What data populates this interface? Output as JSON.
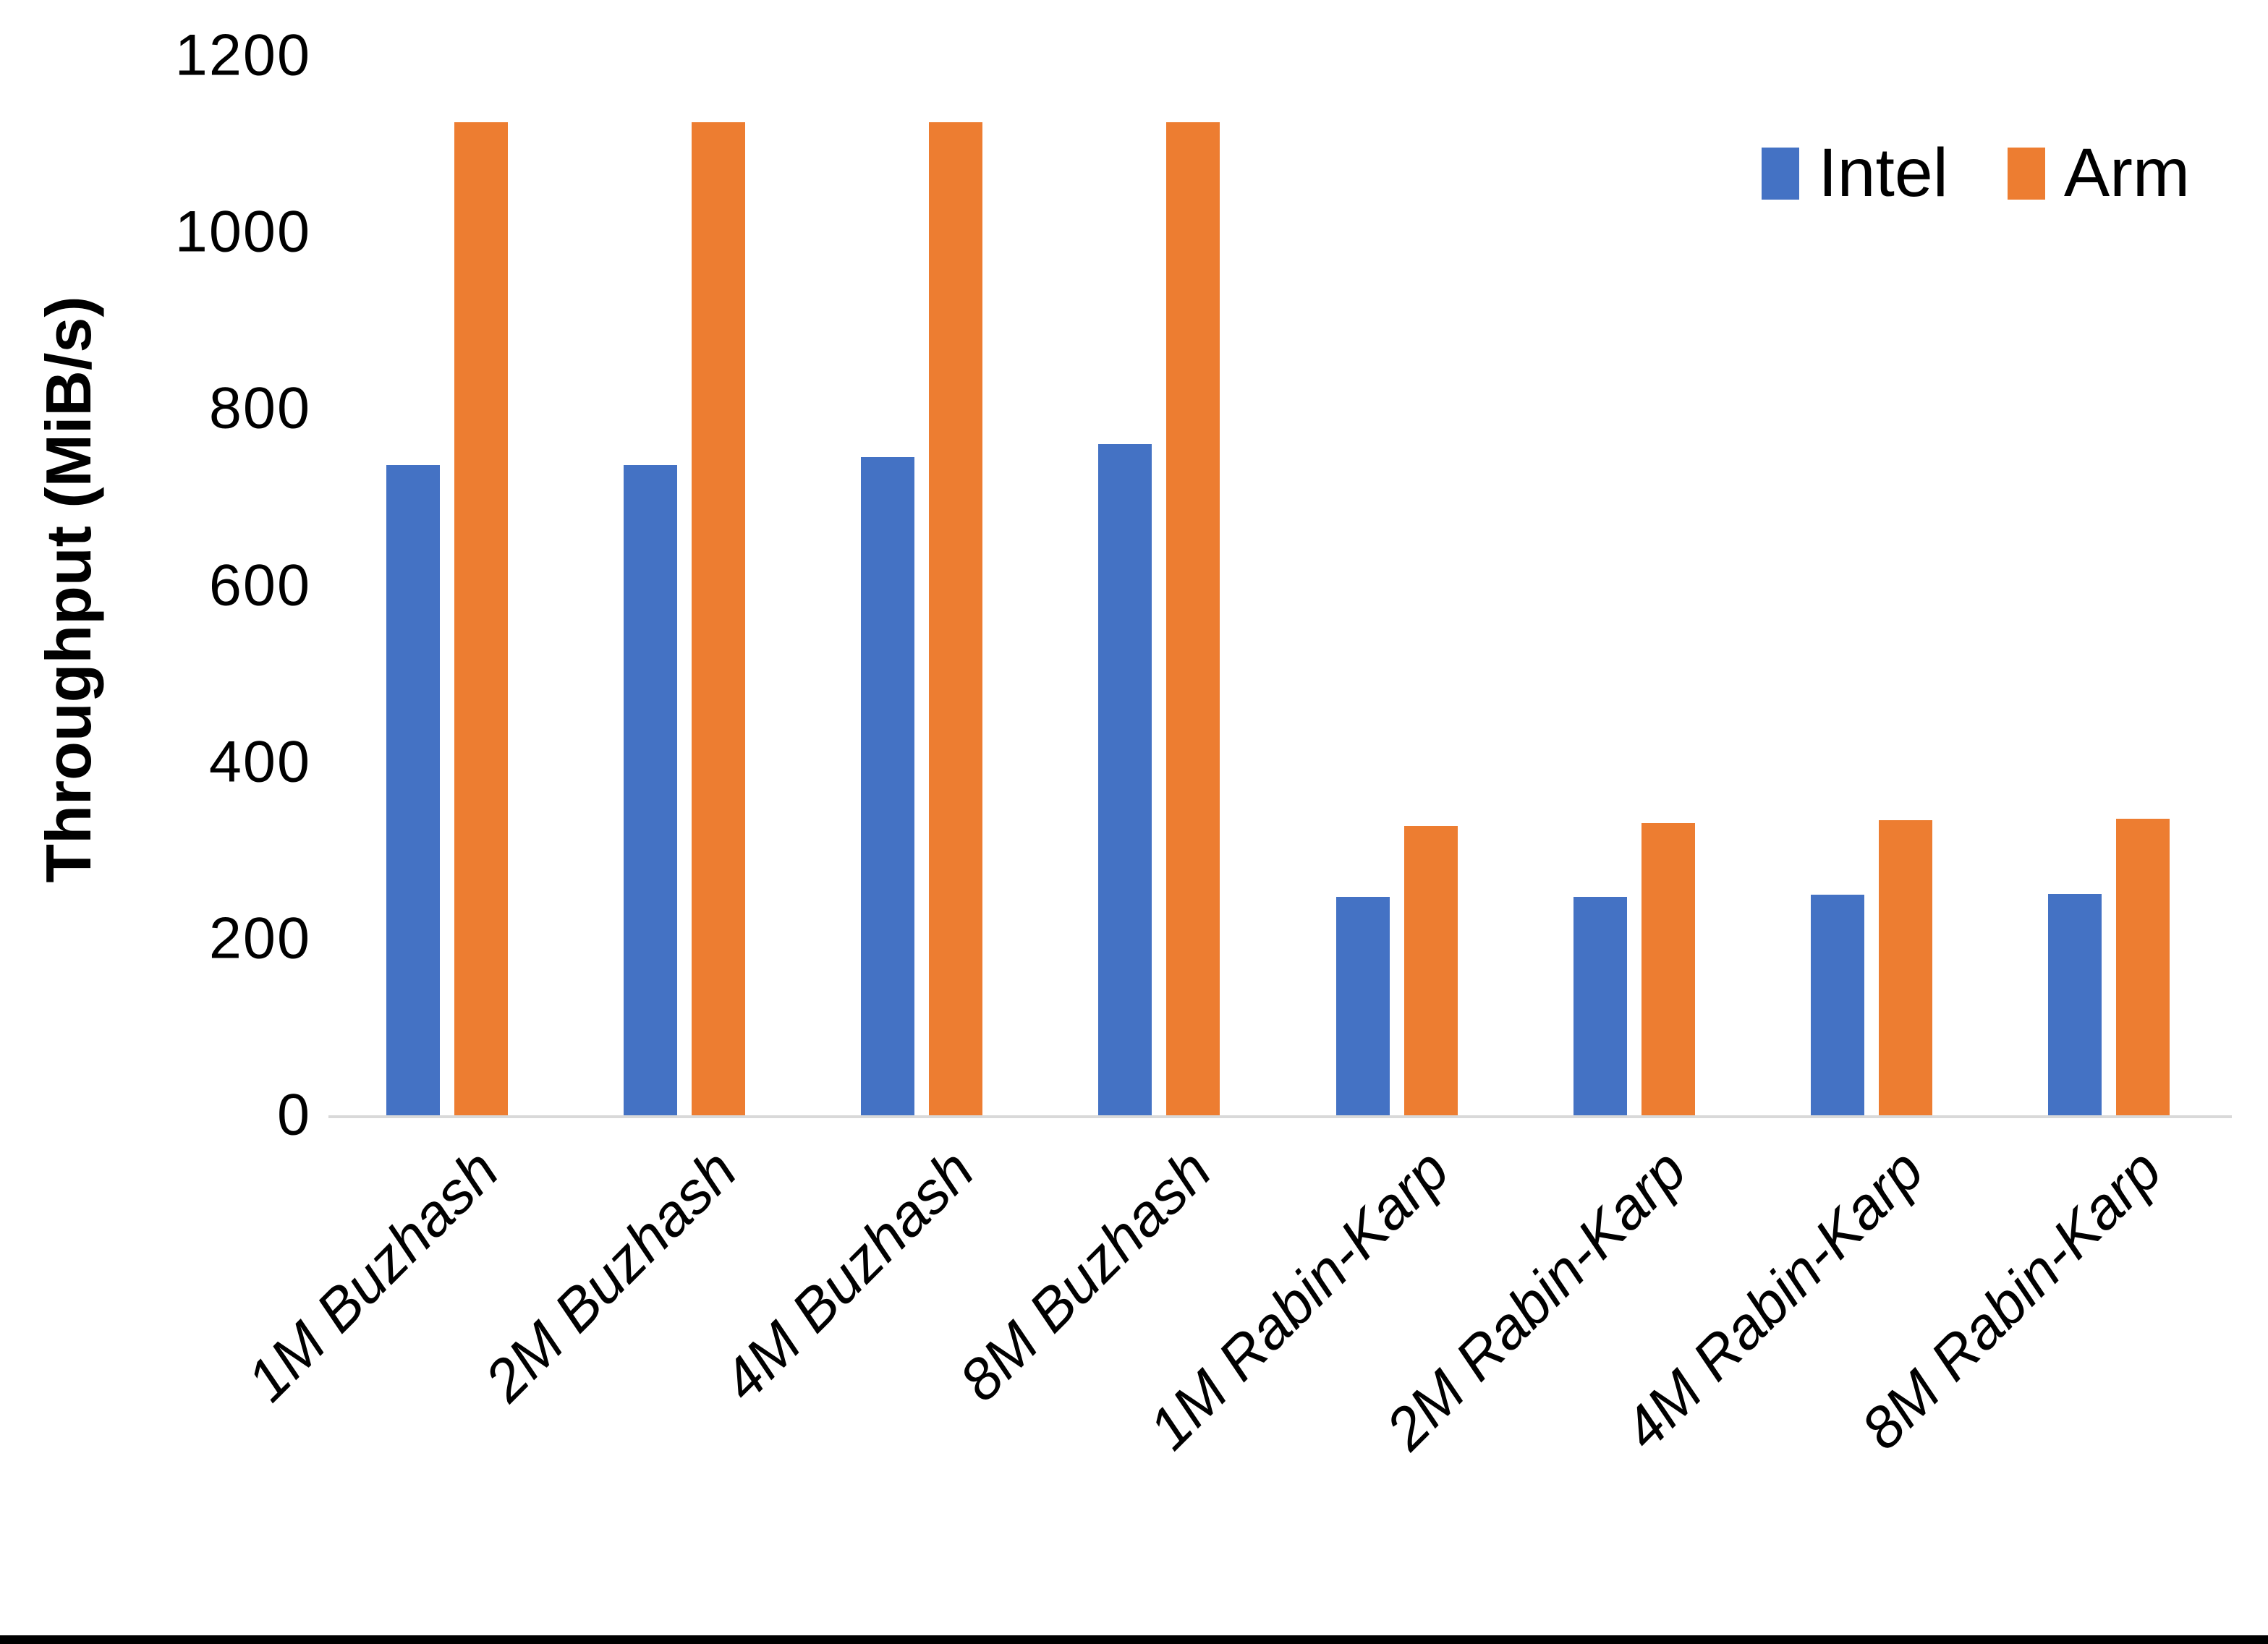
{
  "chart_data": {
    "type": "bar",
    "title": "",
    "ylabel": "Throughput (MiB/s)",
    "xlabel": "",
    "categories": [
      "1M Buzhash",
      "2M Buzhash",
      "4M Buzhash",
      "8M Buzhash",
      "1M Rabin-Karp",
      "2M Rabin-Karp",
      "4M Rabin-Karp",
      "8M Rabin-Karp"
    ],
    "series": [
      {
        "name": "Intel",
        "color": "#4472C4",
        "values": [
          736,
          736,
          745,
          760,
          247,
          247,
          250,
          251
        ]
      },
      {
        "name": "Arm",
        "color": "#ED7D31",
        "values": [
          1125,
          1125,
          1125,
          1125,
          328,
          331,
          334,
          336
        ]
      }
    ],
    "ylim": [
      0,
      1200
    ],
    "yticks": [
      0,
      200,
      400,
      600,
      800,
      1000,
      1200
    ],
    "grid": false,
    "legend_position": "top-right",
    "axis_line_color": "#D9D9D9",
    "background_color": "#FFFFFF",
    "bottom_border_color": "#000000"
  }
}
